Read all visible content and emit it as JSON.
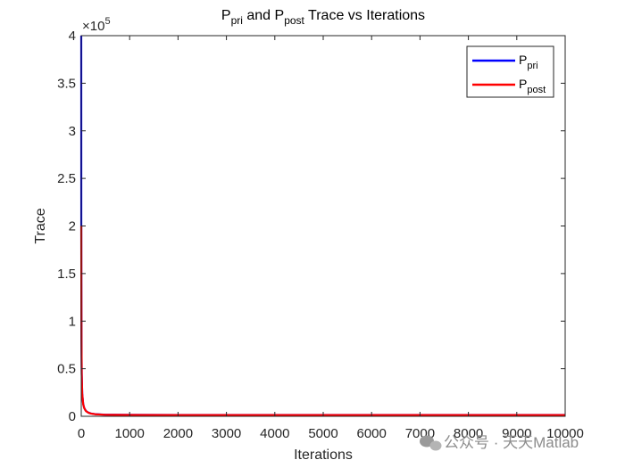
{
  "chart_data": {
    "type": "line",
    "title": {
      "parts": [
        {
          "text": "P",
          "sub": false
        },
        {
          "text": "pri",
          "sub": true
        },
        {
          "text": " and P",
          "sub": false
        },
        {
          "text": "post",
          "sub": true
        },
        {
          "text": " Trace vs Iterations",
          "sub": false
        }
      ]
    },
    "xlabel": "Iterations",
    "ylabel": "Trace",
    "xlim": [
      0,
      10000
    ],
    "ylim": [
      0,
      400000
    ],
    "x_ticks": [
      0,
      1000,
      2000,
      3000,
      4000,
      5000,
      6000,
      7000,
      8000,
      9000,
      10000
    ],
    "y_ticks": [
      0,
      50000,
      100000,
      150000,
      200000,
      250000,
      300000,
      350000,
      400000
    ],
    "y_tick_labels": [
      "0",
      "0.5",
      "1",
      "1.5",
      "2",
      "2.5",
      "3",
      "3.5",
      "4"
    ],
    "y_exponent": {
      "base": "×10",
      "power": "5"
    },
    "grid": false,
    "legend_position": "top-right",
    "series": [
      {
        "name_parts": [
          {
            "text": "P",
            "sub": false
          },
          {
            "text": "pri",
            "sub": true
          }
        ],
        "color": "#0000ff",
        "x": [
          0,
          1,
          2,
          5,
          10,
          20,
          40,
          60,
          80,
          100,
          150,
          200,
          300,
          500,
          1000,
          2000,
          5000,
          10000
        ],
        "y": [
          400000,
          200000,
          150000,
          80000,
          45000,
          24000,
          13000,
          9000,
          7000,
          5500,
          3800,
          3000,
          2200,
          1700,
          1500,
          1450,
          1400,
          1400
        ]
      },
      {
        "name_parts": [
          {
            "text": "P",
            "sub": false
          },
          {
            "text": "post",
            "sub": true
          }
        ],
        "color": "#ff0000",
        "x": [
          1,
          2,
          5,
          10,
          20,
          40,
          60,
          80,
          100,
          150,
          200,
          300,
          500,
          1000,
          2000,
          5000,
          10000
        ],
        "y": [
          200000,
          140000,
          78000,
          44000,
          23500,
          12800,
          8800,
          6800,
          5300,
          3700,
          2900,
          2100,
          1600,
          1400,
          1350,
          1300,
          1300
        ]
      }
    ]
  },
  "watermark": "公众号 · 天天Matlab"
}
